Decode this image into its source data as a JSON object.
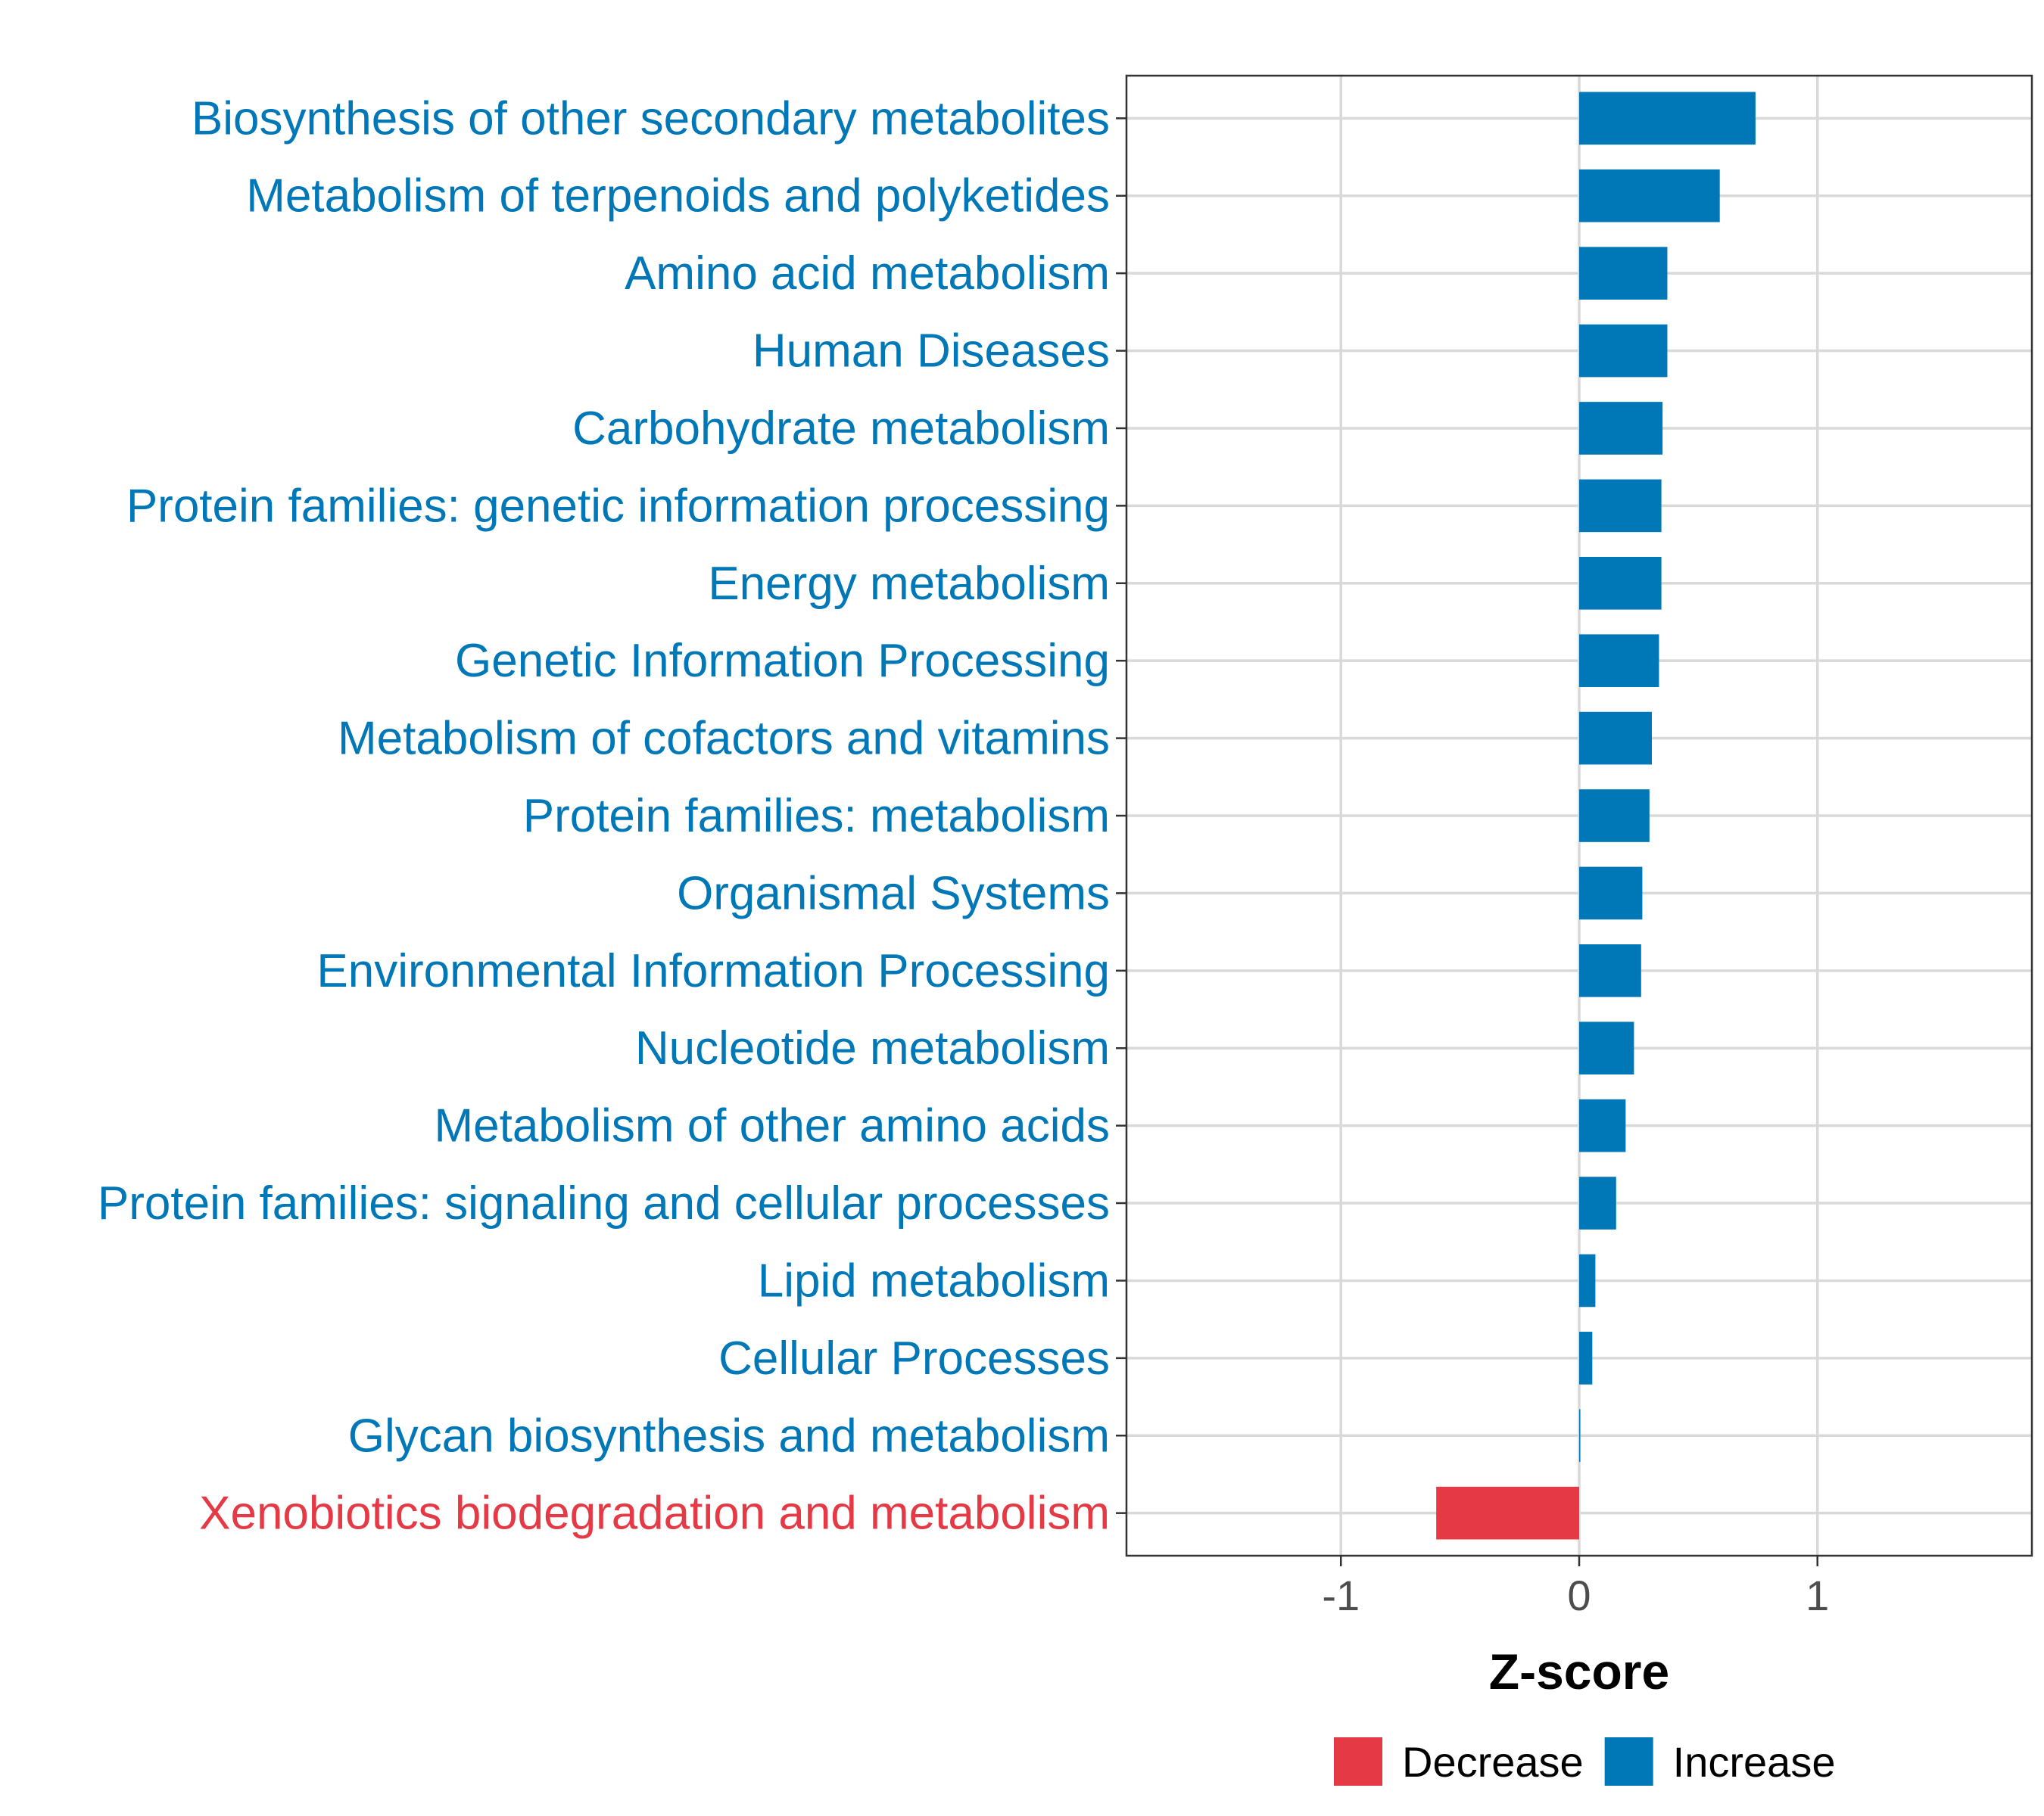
{
  "chart_data": {
    "type": "bar",
    "orientation": "horizontal",
    "categories": [
      "Biosynthesis of other secondary metabolites",
      "Metabolism of terpenoids and polyketides",
      "Amino acid metabolism",
      "Human Diseases",
      "Carbohydrate metabolism",
      "Protein families: genetic information processing",
      "Energy metabolism",
      "Genetic Information Processing",
      "Metabolism of cofactors and vitamins",
      "Protein families: metabolism",
      "Organismal Systems",
      "Environmental Information Processing",
      "Nucleotide metabolism",
      "Metabolism of other amino acids",
      "Protein families: signaling and cellular processes",
      "Lipid metabolism",
      "Cellular Processes",
      "Glycan biosynthesis and metabolism",
      "Xenobiotics biodegradation and metabolism"
    ],
    "values": [
      0.74,
      0.59,
      0.37,
      0.37,
      0.35,
      0.345,
      0.345,
      0.335,
      0.305,
      0.295,
      0.265,
      0.26,
      0.23,
      0.195,
      0.155,
      0.068,
      0.055,
      0.004,
      -0.6
    ],
    "groups": [
      "Increase",
      "Increase",
      "Increase",
      "Increase",
      "Increase",
      "Increase",
      "Increase",
      "Increase",
      "Increase",
      "Increase",
      "Increase",
      "Increase",
      "Increase",
      "Increase",
      "Increase",
      "Increase",
      "Increase",
      "Increase",
      "Decrease"
    ],
    "xlabel": "Z-score",
    "ylabel": "",
    "xlim": [
      -1.9,
      1.9
    ],
    "xticks": [
      -1,
      0,
      1
    ],
    "xtick_labels": [
      "-1",
      "0",
      "1"
    ],
    "grid": true,
    "legend": {
      "placement": "bottom",
      "entries": [
        {
          "label": "Decrease",
          "color": "#e63946"
        },
        {
          "label": "Increase",
          "color": "#0077b6"
        }
      ]
    },
    "colors": {
      "Increase": "#0077b6",
      "Decrease": "#e63946"
    }
  }
}
